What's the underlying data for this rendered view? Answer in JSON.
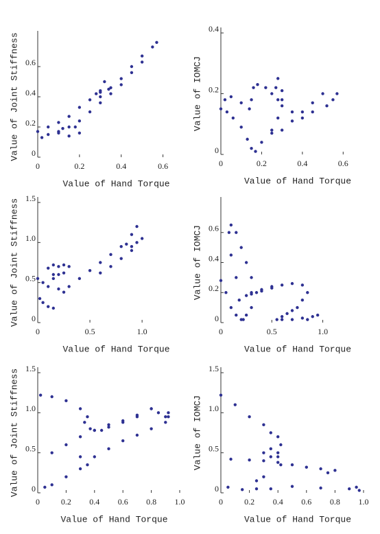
{
  "chart_data": [
    {
      "type": "scatter",
      "color": "#2e3192",
      "x_label": "Value of Hand Torque",
      "y_label": "Value of Joint Stiffness",
      "xlim": [
        0,
        0.7
      ],
      "ylim": [
        0,
        0.8
      ],
      "xticks": [
        0,
        0.2,
        0.4,
        0.6
      ],
      "yticks": [
        0,
        0.2,
        0.4,
        0.6
      ],
      "x": [
        0,
        0.05,
        0.1,
        0.15,
        0.2,
        0.25,
        0.3,
        0.35,
        0.4,
        0.45,
        0.5,
        0.55,
        0.57,
        0.5,
        0.45,
        0.4,
        0.35,
        0.3,
        0.25,
        0.2,
        0.15,
        0.1,
        0.05,
        0.02,
        0.12,
        0.18,
        0.2,
        0.15,
        0.1,
        0.3,
        0.32,
        0.34,
        0.3,
        0.28
      ],
      "values": [
        0.17,
        0.2,
        0.23,
        0.27,
        0.33,
        0.38,
        0.43,
        0.46,
        0.52,
        0.6,
        0.67,
        0.73,
        0.76,
        0.63,
        0.56,
        0.48,
        0.42,
        0.36,
        0.3,
        0.24,
        0.2,
        0.17,
        0.15,
        0.13,
        0.19,
        0.2,
        0.16,
        0.14,
        0.16,
        0.44,
        0.5,
        0.45,
        0.4,
        0.42
      ]
    },
    {
      "type": "scatter",
      "color": "#2e3192",
      "x_label": "Value of Hand Torque",
      "y_label": "Value of IOMCJ",
      "xlim": [
        0,
        0.7
      ],
      "ylim": [
        0,
        0.4
      ],
      "xticks": [
        0,
        0.2,
        0.4,
        0.6
      ],
      "yticks": [
        0,
        0.2,
        0.4
      ],
      "x": [
        0,
        0.03,
        0.06,
        0.1,
        0.13,
        0.15,
        0.17,
        0.2,
        0.25,
        0.3,
        0.35,
        0.4,
        0.45,
        0.5,
        0.55,
        0.57,
        0.52,
        0.45,
        0.4,
        0.35,
        0.3,
        0.28,
        0.25,
        0.22,
        0.18,
        0.16,
        0.15,
        0.14,
        0.1,
        0.05,
        0.02,
        0.25,
        0.28,
        0.3,
        0.27,
        0.28,
        0.3
      ],
      "values": [
        0.15,
        0.14,
        0.12,
        0.09,
        0.05,
        0.02,
        0.01,
        0.04,
        0.07,
        0.08,
        0.11,
        0.14,
        0.17,
        0.2,
        0.18,
        0.2,
        0.16,
        0.14,
        0.12,
        0.14,
        0.16,
        0.18,
        0.2,
        0.22,
        0.23,
        0.22,
        0.18,
        0.15,
        0.17,
        0.19,
        0.18,
        0.08,
        0.12,
        0.18,
        0.22,
        0.25,
        0.21
      ]
    },
    {
      "type": "scatter",
      "color": "#2e3192",
      "x_label": "Value of Hand Torque",
      "y_label": "Value of Joint Stiffness",
      "xlim": [
        0,
        1.4
      ],
      "ylim": [
        0,
        1.5
      ],
      "xticks": [
        0,
        0.5,
        {
          "value": 1,
          "label": "1.0"
        }
      ],
      "yticks": [
        0,
        0.5,
        {
          "value": 1,
          "label": "1.0"
        },
        1.5
      ],
      "x": [
        0,
        0.05,
        0.1,
        0.15,
        0.2,
        0.25,
        0.3,
        0.25,
        0.2,
        0.15,
        0.1,
        0.15,
        0.2,
        0.25,
        0.3,
        0.4,
        0.5,
        0.6,
        0.7,
        0.8,
        0.9,
        0.95,
        0.85,
        0.9,
        0.95,
        1.0,
        0.9,
        0.8,
        0.7,
        0.6,
        0.02,
        0.05,
        0.1,
        0.15
      ],
      "values": [
        0.55,
        0.5,
        0.45,
        0.55,
        0.6,
        0.62,
        0.7,
        0.72,
        0.7,
        0.72,
        0.68,
        0.6,
        0.42,
        0.38,
        0.45,
        0.55,
        0.65,
        0.75,
        0.85,
        0.95,
        1.1,
        1.2,
        0.98,
        0.95,
        1.0,
        1.05,
        0.9,
        0.8,
        0.7,
        0.62,
        0.3,
        0.25,
        0.2,
        0.18
      ]
    },
    {
      "type": "scatter",
      "color": "#2e3192",
      "x_label": "Value of Hand Torque",
      "y_label": "Value of IOMCJ",
      "xlim": [
        0,
        1.4
      ],
      "ylim": [
        0,
        0.8
      ],
      "xticks": [
        0,
        0.5,
        {
          "value": 1,
          "label": "1.0"
        }
      ],
      "yticks": [
        0,
        0.2,
        0.4,
        0.6
      ],
      "x": [
        0,
        0.05,
        0.1,
        0.15,
        0.2,
        0.18,
        0.15,
        0.1,
        0.08,
        0.1,
        0.15,
        0.2,
        0.25,
        0.3,
        0.35,
        0.3,
        0.25,
        0.22,
        0.3,
        0.4,
        0.5,
        0.6,
        0.7,
        0.8,
        0.85,
        0.8,
        0.75,
        0.7,
        0.65,
        0.6,
        0.55,
        0.6,
        0.7,
        0.8,
        0.9,
        0.95,
        0.85,
        0.25,
        0.3,
        0.4,
        0.5
      ],
      "values": [
        0.28,
        0.2,
        0.1,
        0.05,
        0.02,
        0.15,
        0.3,
        0.45,
        0.6,
        0.65,
        0.6,
        0.5,
        0.4,
        0.3,
        0.2,
        0.1,
        0.05,
        0.02,
        0.2,
        0.22,
        0.24,
        0.25,
        0.26,
        0.25,
        0.2,
        0.15,
        0.1,
        0.08,
        0.06,
        0.04,
        0.02,
        0.02,
        0.02,
        0.03,
        0.04,
        0.05,
        0.02,
        0.18,
        0.19,
        0.21,
        0.23
      ]
    },
    {
      "type": "scatter",
      "color": "#2e3192",
      "x_label": "Value of Hand Torque",
      "y_label": "Value of Joint Stiffness",
      "xlim": [
        0,
        1
      ],
      "ylim": [
        0,
        1.5
      ],
      "xticks": [
        0,
        0.2,
        0.4,
        0.6,
        0.8,
        {
          "value": 1,
          "label": "1.0"
        }
      ],
      "yticks": [
        0,
        0.5,
        {
          "value": 1,
          "label": "1.0"
        },
        1.5
      ],
      "x": [
        0.02,
        0.1,
        0.2,
        0.3,
        0.35,
        0.33,
        0.37,
        0.4,
        0.45,
        0.5,
        0.6,
        0.7,
        0.8,
        0.1,
        0.2,
        0.3,
        0.4,
        0.5,
        0.6,
        0.7,
        0.8,
        0.85,
        0.9,
        0.92,
        0.05,
        0.1,
        0.2,
        0.3,
        0.35,
        0.3,
        0.4,
        0.5,
        0.6,
        0.7,
        0.8,
        0.9,
        0.92
      ],
      "values": [
        1.22,
        1.2,
        1.15,
        1.05,
        0.95,
        0.88,
        0.8,
        0.78,
        0.78,
        0.82,
        0.88,
        0.95,
        1.05,
        0.5,
        0.6,
        0.7,
        0.78,
        0.85,
        0.9,
        0.97,
        1.05,
        1.0,
        0.95,
        1.0,
        0.07,
        0.1,
        0.2,
        0.3,
        0.35,
        0.45,
        0.45,
        0.55,
        0.65,
        0.72,
        0.8,
        0.88,
        0.95
      ]
    },
    {
      "type": "scatter",
      "color": "#2e3192",
      "x_label": "Value of Hand Torque",
      "y_label": "Value of IOMCJ",
      "xlim": [
        0,
        1
      ],
      "ylim": [
        0,
        1.5
      ],
      "xticks": [
        0,
        0.2,
        0.4,
        0.6,
        0.8,
        {
          "value": 1,
          "label": "1.0"
        }
      ],
      "yticks": [
        0,
        0.5,
        {
          "value": 1,
          "label": "1.0"
        },
        1.5
      ],
      "x": [
        0,
        0.1,
        0.2,
        0.3,
        0.35,
        0.4,
        0.42,
        0.4,
        0.35,
        0.3,
        0.35,
        0.4,
        0.42,
        0.07,
        0.2,
        0.3,
        0.4,
        0.5,
        0.6,
        0.7,
        0.8,
        0.75,
        0.05,
        0.15,
        0.25,
        0.3,
        0.25,
        0.35,
        0.5,
        0.7,
        0.9,
        0.97,
        0.95
      ],
      "values": [
        1.22,
        1.1,
        0.95,
        0.85,
        0.75,
        0.7,
        0.6,
        0.5,
        0.45,
        0.5,
        0.55,
        0.45,
        0.35,
        0.42,
        0.41,
        0.4,
        0.38,
        0.35,
        0.32,
        0.3,
        0.28,
        0.25,
        0.07,
        0.04,
        0.05,
        0.2,
        0.15,
        0.05,
        0.08,
        0.06,
        0.05,
        0.03,
        0.07
      ]
    }
  ]
}
